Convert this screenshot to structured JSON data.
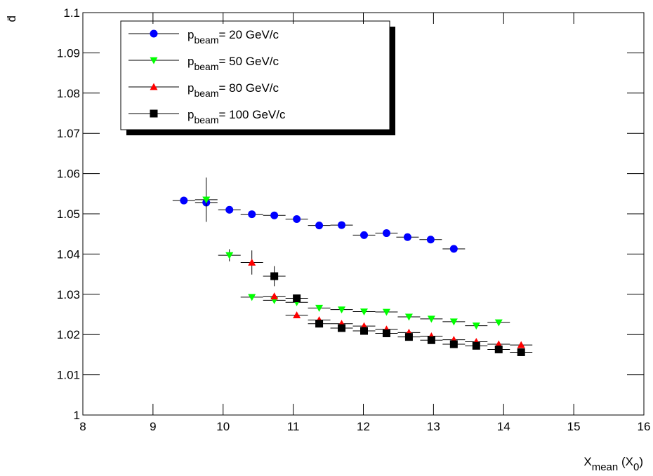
{
  "chart_data": {
    "type": "errorbar",
    "y_label": "d̄",
    "x_label": [
      "X",
      "mean",
      " (X",
      "0",
      ")"
    ],
    "xlim": [
      8,
      16
    ],
    "xticks": [
      8,
      9,
      10,
      11,
      12,
      13,
      14,
      15,
      16
    ],
    "ylim": [
      1,
      1.1
    ],
    "yticks": [
      1,
      1.01,
      1.02,
      1.03,
      1.04,
      1.05,
      1.06,
      1.07,
      1.08,
      1.09,
      1.1
    ],
    "legend": "top-left",
    "series": [
      {
        "name": [
          "p",
          "beam",
          "= 20 GeV/c"
        ],
        "color": "#0000ff",
        "marker": "circle",
        "xerr": 0.16,
        "x": [
          9.44,
          9.76,
          10.09,
          10.41,
          10.73,
          11.05,
          11.37,
          11.69,
          12.01,
          12.33,
          12.63,
          12.96,
          13.29
        ],
        "values": [
          1.0533,
          1.0528,
          1.051,
          1.0499,
          1.0496,
          1.0487,
          1.0471,
          1.0472,
          1.0447,
          1.0452,
          1.0442,
          1.0436,
          1.0413
        ],
        "yerr": [
          0.0008,
          0.0008,
          0.0005,
          0.0005,
          0.0005,
          0.0005,
          0.0005,
          0.0005,
          0.0005,
          0.0005,
          0.0005,
          0.0005,
          0.0008
        ]
      },
      {
        "name": [
          "p",
          "beam",
          "= 50 GeV/c"
        ],
        "color": "#00ff00",
        "marker": "triangle-down",
        "xerr": 0.16,
        "x": [
          9.76,
          10.09,
          10.41,
          10.73,
          11.05,
          11.37,
          11.69,
          12.01,
          12.33,
          12.65,
          12.97,
          13.29,
          13.61,
          13.93
        ],
        "values": [
          1.0535,
          1.0397,
          1.0293,
          1.0285,
          1.028,
          1.0266,
          1.0262,
          1.0257,
          1.0256,
          1.0244,
          1.0239,
          1.0232,
          1.0222,
          1.023
        ],
        "yerr": [
          0.0055,
          0.0015,
          0.0004,
          0.0004,
          0.0004,
          0.0004,
          0.0004,
          0.0004,
          0.0004,
          0.0004,
          0.0004,
          0.0004,
          0.0004,
          0.0004
        ]
      },
      {
        "name": [
          "p",
          "beam",
          "= 80 GeV/c"
        ],
        "color": "#ff0000",
        "marker": "triangle-up",
        "xerr": 0.16,
        "x": [
          10.41,
          10.73,
          11.05,
          11.37,
          11.69,
          12.01,
          12.33,
          12.65,
          12.97,
          13.29,
          13.61,
          13.93,
          14.25
        ],
        "values": [
          1.0379,
          1.0295,
          1.0248,
          1.0236,
          1.0227,
          1.0221,
          1.0213,
          1.0205,
          1.0196,
          1.0187,
          1.0182,
          1.0176,
          1.0174
        ],
        "yerr": [
          0.003,
          0.0006,
          0.0004,
          0.0004,
          0.0004,
          0.0004,
          0.0004,
          0.0004,
          0.0004,
          0.0004,
          0.0004,
          0.0004,
          0.0004
        ]
      },
      {
        "name": [
          "p",
          "beam",
          "= 100 GeV/c"
        ],
        "color": "#000000",
        "marker": "square",
        "xerr": 0.16,
        "x": [
          10.73,
          11.05,
          11.37,
          11.69,
          12.01,
          12.33,
          12.65,
          12.97,
          13.29,
          13.61,
          13.93,
          14.25
        ],
        "values": [
          1.0345,
          1.029,
          1.0227,
          1.0216,
          1.0209,
          1.0203,
          1.0194,
          1.0186,
          1.0176,
          1.0172,
          1.0163,
          1.0156
        ],
        "yerr": [
          0.0025,
          0.0008,
          0.0004,
          0.0004,
          0.0004,
          0.0004,
          0.0004,
          0.0004,
          0.0004,
          0.0004,
          0.0004,
          0.0004
        ]
      }
    ]
  }
}
